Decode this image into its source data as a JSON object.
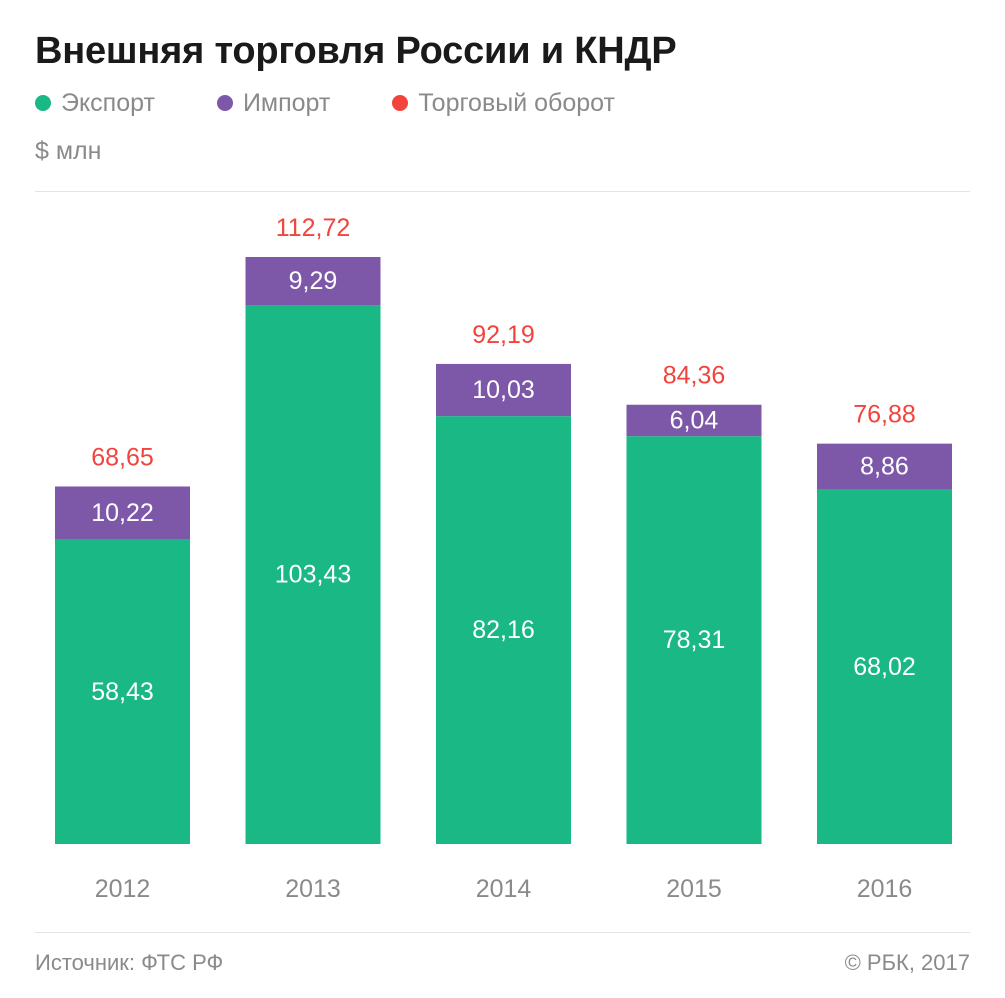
{
  "header": {
    "title": "Внешняя торговля России и КНДР",
    "unit": "$ млн"
  },
  "legend": [
    {
      "label": "Экспорт",
      "color": "#19b884"
    },
    {
      "label": "Импорт",
      "color": "#7d58a8"
    },
    {
      "label": "Торговый оборот",
      "color": "#f2433c"
    }
  ],
  "footer": {
    "source": "Источник: ФТС РФ",
    "copyright": "© РБК, 2017"
  },
  "chart_data": {
    "type": "bar",
    "stacked": true,
    "categories": [
      "2012",
      "2013",
      "2014",
      "2015",
      "2016"
    ],
    "series": [
      {
        "name": "Экспорт",
        "color": "#19b884",
        "values": [
          58.43,
          103.43,
          82.16,
          78.31,
          68.02
        ],
        "labels": [
          "58,43",
          "103,43",
          "82,16",
          "78,31",
          "68,02"
        ]
      },
      {
        "name": "Импорт",
        "color": "#7d58a8",
        "values": [
          10.22,
          9.29,
          10.03,
          6.04,
          8.86
        ],
        "labels": [
          "10,22",
          "9,29",
          "10,03",
          "6,04",
          "8,86"
        ]
      }
    ],
    "totals": {
      "name": "Торговый оборот",
      "color": "#f2433c",
      "values": [
        68.65,
        112.72,
        92.19,
        84.36,
        76.88
      ],
      "labels": [
        "68,65",
        "112,72",
        "92,19",
        "84,36",
        "76,88"
      ]
    },
    "ylim": [
      0,
      112.72
    ],
    "grid": false,
    "legend_position": "top-left"
  }
}
